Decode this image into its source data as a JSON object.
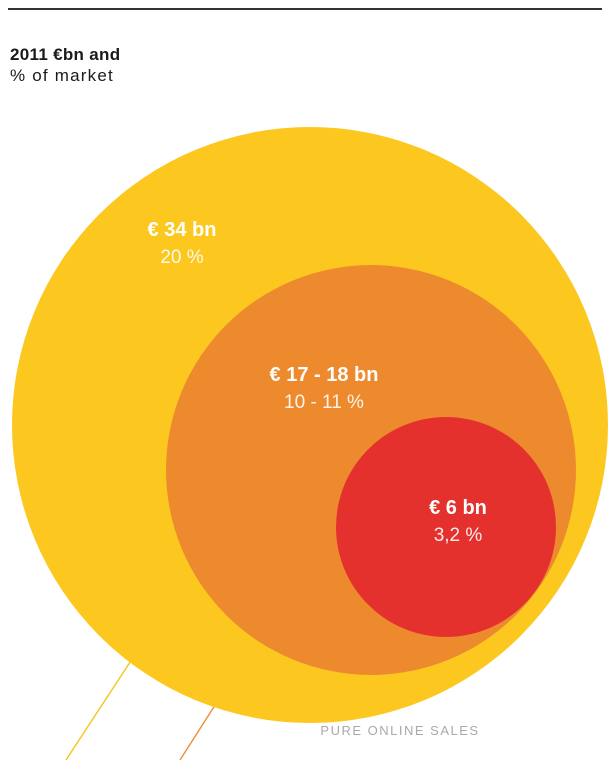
{
  "heading": {
    "line1": "2011 €bn and",
    "line2": "% of market"
  },
  "chart_data": {
    "type": "nested-bubble",
    "title": "2011 €bn and % of market",
    "circles": [
      {
        "value_label": "€ 34 bn",
        "percent_label": "20 %",
        "value_bn": 34,
        "percent": 20,
        "color": "#FCC820"
      },
      {
        "value_label": "€ 17 - 18 bn",
        "percent_label": "10 - 11 %",
        "value_bn": 17.5,
        "percent": 10.5,
        "color": "#EE8A2E"
      },
      {
        "value_label": "€ 6 bn",
        "percent_label": "3,2 %",
        "value_bn": 6,
        "percent": 3.2,
        "color": "#E5312E"
      }
    ],
    "caption": "PURE ONLINE SALES"
  }
}
